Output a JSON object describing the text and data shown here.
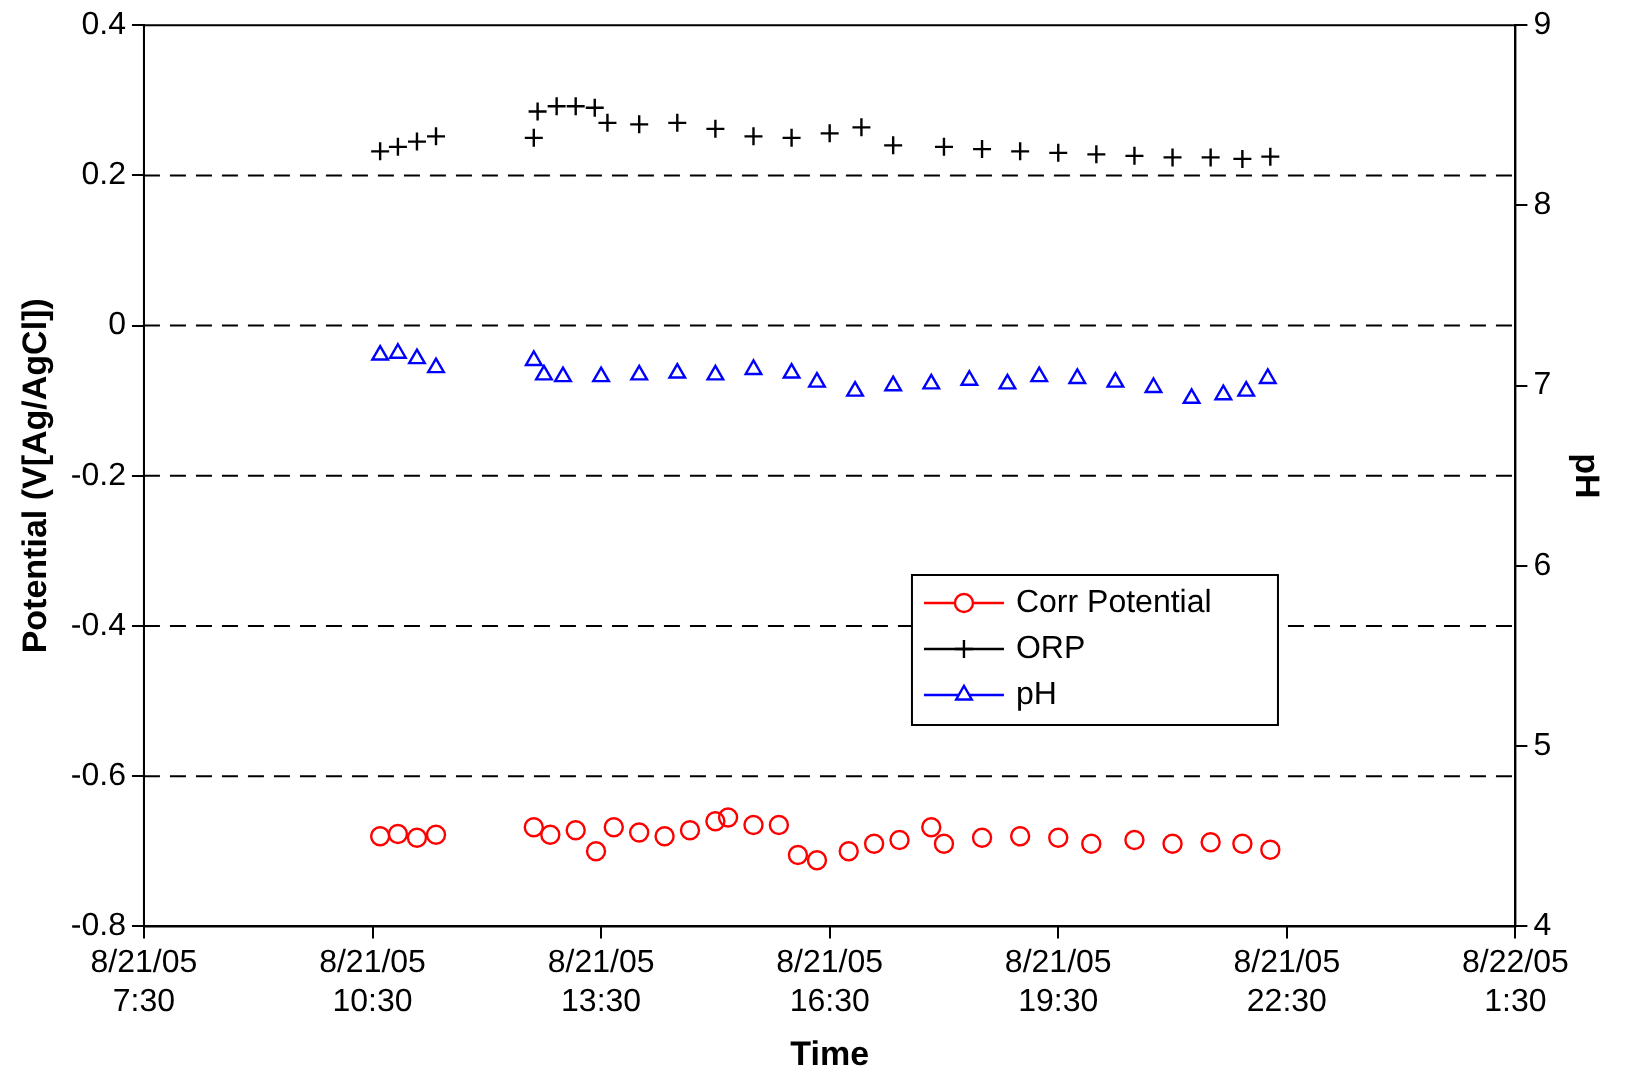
{
  "chart_data": {
    "type": "scatter",
    "xlabel": "Time",
    "ylabel": "Potential (V[Ag/AgCl])",
    "y2label": "pH",
    "xlim": [
      "--08-21T07:30",
      "--08-22T01:30"
    ],
    "xticks": [
      {
        "value": "--08-21T07:30",
        "label": "8/21/05\n7:30"
      },
      {
        "value": "--08-21T10:30",
        "label": "8/21/05\n10:30"
      },
      {
        "value": "--08-21T13:30",
        "label": "8/21/05\n13:30"
      },
      {
        "value": "--08-21T16:30",
        "label": "8/21/05\n16:30"
      },
      {
        "value": "--08-21T19:30",
        "label": "8/21/05\n19:30"
      },
      {
        "value": "--08-21T22:30",
        "label": "8/21/05\n22:30"
      },
      {
        "value": "--08-22T01:30",
        "label": "8/22/05\n1:30"
      }
    ],
    "ylim": [
      -0.8,
      0.4
    ],
    "yticks": [
      -0.8,
      -0.6,
      -0.4,
      -0.2,
      0,
      0.2,
      0.4
    ],
    "y2lim": [
      4,
      9
    ],
    "y2ticks": [
      4,
      5,
      6,
      7,
      8,
      9
    ],
    "grid": "y",
    "legend": "right",
    "series": [
      {
        "name": "Corr Potential",
        "color": "#ff0000",
        "marker": "circle",
        "x": [
          "--08-21T10:36",
          "--08-21T10:50",
          "--08-21T11:05",
          "--08-21T11:20",
          "--08-21T12:37",
          "--08-21T12:50",
          "--08-21T13:10",
          "--08-21T13:26",
          "--08-21T13:40",
          "--08-21T14:00",
          "--08-21T14:20",
          "--08-21T14:40",
          "--08-21T15:00",
          "--08-21T15:10",
          "--08-21T15:30",
          "--08-21T15:50",
          "--08-21T16:05",
          "--08-21T16:20",
          "--08-21T16:45",
          "--08-21T17:05",
          "--08-21T17:25",
          "--08-21T17:50",
          "--08-21T18:00",
          "--08-21T18:30",
          "--08-21T19:00",
          "--08-21T19:30",
          "--08-21T19:56",
          "--08-21T20:30",
          "--08-21T21:00",
          "--08-21T21:30",
          "--08-21T21:55",
          "--08-21T22:17"
        ],
        "values": [
          -0.68,
          -0.677,
          -0.682,
          -0.678,
          -0.668,
          -0.678,
          -0.672,
          -0.7,
          -0.668,
          -0.675,
          -0.68,
          -0.672,
          -0.66,
          -0.655,
          -0.665,
          -0.665,
          -0.705,
          -0.712,
          -0.7,
          -0.69,
          -0.685,
          -0.668,
          -0.69,
          -0.682,
          -0.68,
          -0.682,
          -0.69,
          -0.685,
          -0.69,
          -0.688,
          -0.69,
          -0.698
        ]
      },
      {
        "name": "ORP",
        "color": "#000000",
        "marker": "cross",
        "x": [
          "--08-21T10:36",
          "--08-21T10:50",
          "--08-21T11:05",
          "--08-21T11:20",
          "--08-21T12:37",
          "--08-21T12:40",
          "--08-21T12:55",
          "--08-21T13:10",
          "--08-21T13:25",
          "--08-21T13:35",
          "--08-21T14:00",
          "--08-21T14:30",
          "--08-21T15:00",
          "--08-21T15:30",
          "--08-21T16:00",
          "--08-21T16:30",
          "--08-21T16:55",
          "--08-21T17:20",
          "--08-21T18:00",
          "--08-21T18:30",
          "--08-21T19:00",
          "--08-21T19:30",
          "--08-21T20:00",
          "--08-21T20:30",
          "--08-21T21:00",
          "--08-21T21:30",
          "--08-21T21:55",
          "--08-21T22:17"
        ],
        "values": [
          0.232,
          0.238,
          0.245,
          0.252,
          0.25,
          0.285,
          0.292,
          0.292,
          0.29,
          0.27,
          0.268,
          0.27,
          0.262,
          0.252,
          0.25,
          0.256,
          0.264,
          0.24,
          0.238,
          0.235,
          0.232,
          0.23,
          0.228,
          0.226,
          0.224,
          0.224,
          0.222,
          0.225
        ]
      },
      {
        "name": "pH",
        "color": "#0000ff",
        "marker": "triangle",
        "axis": "y2",
        "x": [
          "--08-21T10:36",
          "--08-21T10:50",
          "--08-21T11:05",
          "--08-21T11:20",
          "--08-21T12:37",
          "--08-21T12:45",
          "--08-21T13:00",
          "--08-21T13:30",
          "--08-21T14:00",
          "--08-21T14:30",
          "--08-21T15:00",
          "--08-21T15:30",
          "--08-21T16:00",
          "--08-21T16:20",
          "--08-21T16:50",
          "--08-21T17:20",
          "--08-21T17:50",
          "--08-21T18:20",
          "--08-21T18:50",
          "--08-21T19:15",
          "--08-21T19:45",
          "--08-21T20:15",
          "--08-21T20:45",
          "--08-21T21:15",
          "--08-21T21:40",
          "--08-21T21:58",
          "--08-21T22:15"
        ],
        "values": [
          7.17,
          7.18,
          7.15,
          7.1,
          7.14,
          7.06,
          7.05,
          7.05,
          7.06,
          7.07,
          7.06,
          7.09,
          7.07,
          7.02,
          6.97,
          7,
          7.01,
          7.03,
          7.01,
          7.05,
          7.04,
          7.02,
          6.99,
          6.93,
          6.95,
          6.97,
          7.04
        ]
      }
    ]
  }
}
